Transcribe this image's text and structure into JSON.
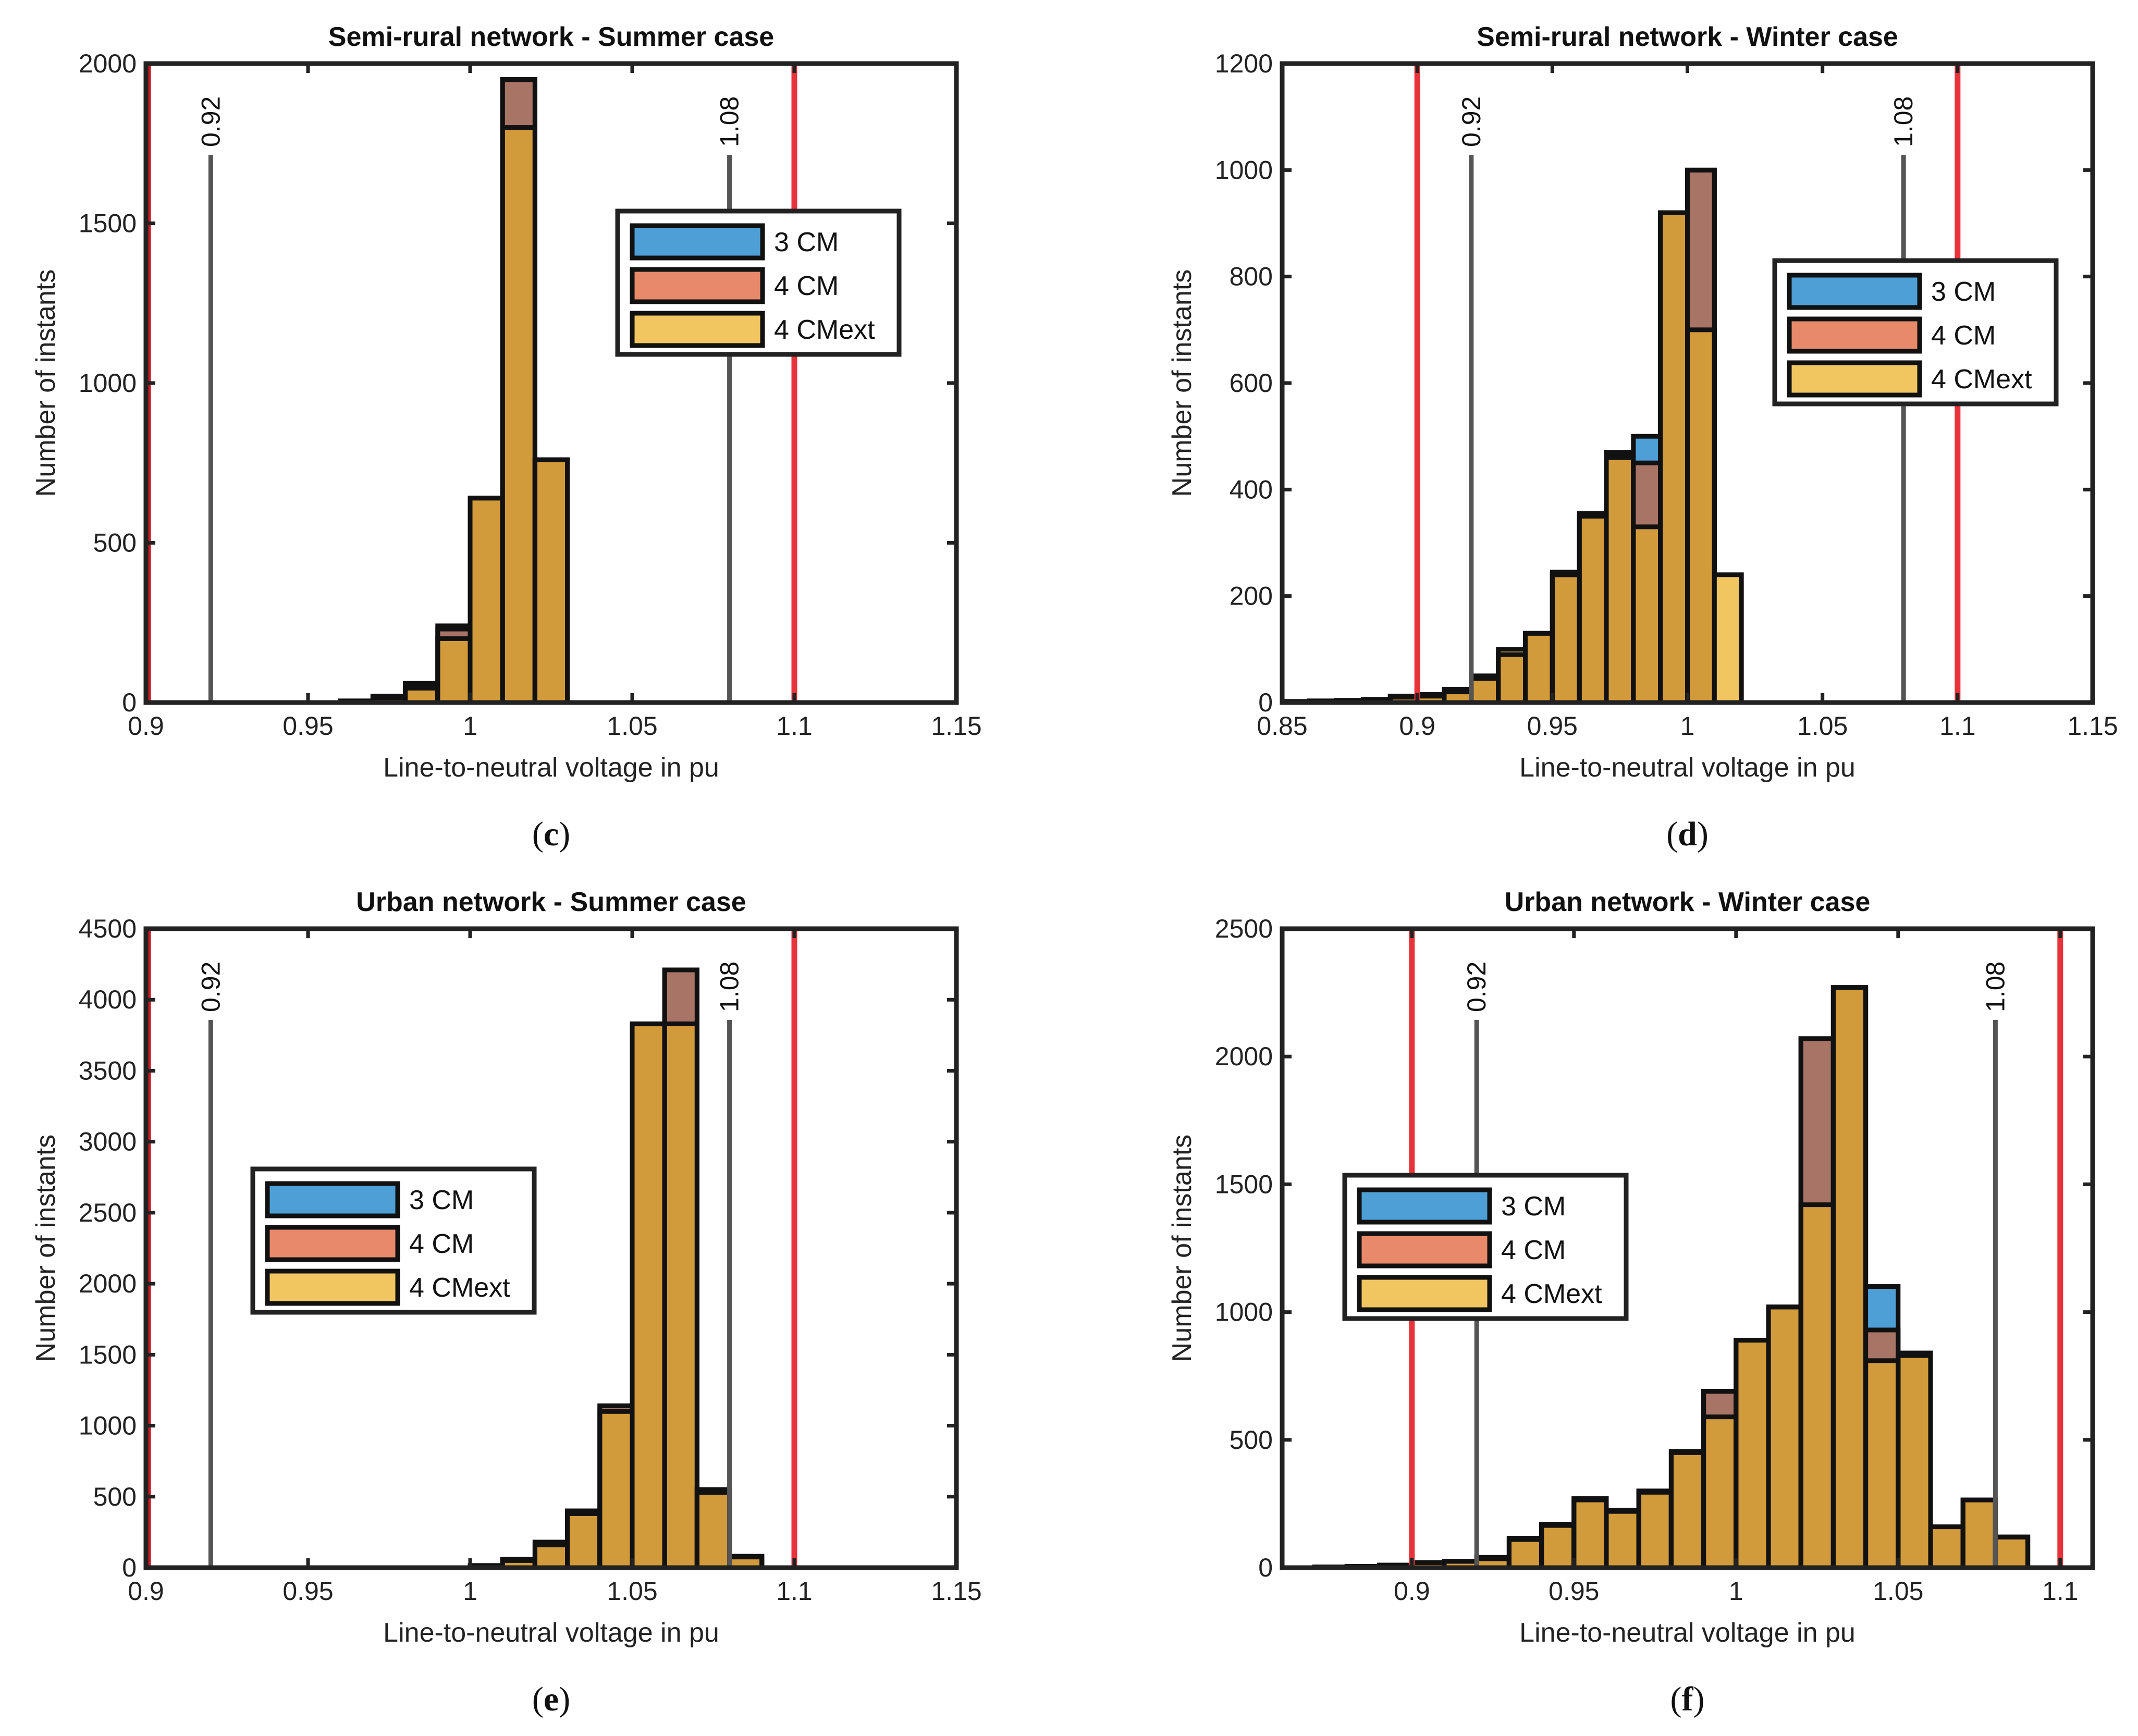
{
  "figure": {
    "legend_entries": [
      {
        "name": "3 CM",
        "color": "#4d9fd6"
      },
      {
        "name": "4 CM",
        "color": "#e8896a"
      },
      {
        "name": "4 CMext",
        "color": "#f1c661"
      }
    ],
    "colors": {
      "overlap": "#d19a3a",
      "overlap_3_4": "#a87466",
      "limit_line": "#e8333a",
      "limit_line_dark": "#c41c24",
      "ref_line": "#555555",
      "frame": "#222222"
    }
  },
  "chart_data": [
    {
      "panel_label": "c",
      "type": "bar",
      "title": "Semi-rural network - Summer case",
      "xlabel": "Line-to-neutral voltage in pu",
      "ylabel": "Number of instants",
      "xlim": [
        0.9,
        1.15
      ],
      "ylim": [
        0,
        2000
      ],
      "xticks": [
        0.9,
        0.95,
        1,
        1.05,
        1.1,
        1.15
      ],
      "xtick_labels": [
        "0.9",
        "0.95",
        "1",
        "1.05",
        "1.1",
        "1.15"
      ],
      "yticks": [
        0,
        500,
        1000,
        1500,
        2000
      ],
      "ytick_labels": [
        "0",
        "500",
        "1000",
        "1500",
        "2000"
      ],
      "bin_width": 0.01,
      "bin_edges": [
        0.96,
        0.97,
        0.98,
        0.99,
        1.0,
        1.01,
        1.02
      ],
      "series": [
        {
          "name": "3 CM",
          "values": [
            5,
            20,
            60,
            240,
            640,
            1950,
            760
          ]
        },
        {
          "name": "4 CM",
          "values": [
            5,
            20,
            55,
            230,
            640,
            1950,
            760
          ]
        },
        {
          "name": "4 CMext",
          "values": [
            5,
            15,
            45,
            200,
            640,
            1800,
            760
          ]
        }
      ],
      "ref_lines": [
        {
          "x": 0.92,
          "label": "0.92"
        },
        {
          "x": 1.08,
          "label": "1.08"
        }
      ],
      "limit_lines": [
        0.9,
        1.1
      ],
      "legend_position": "top-right"
    },
    {
      "panel_label": "d",
      "type": "bar",
      "title": "Semi-rural network - Winter case",
      "xlabel": "Line-to-neutral voltage in pu",
      "ylabel": "Number of instants",
      "xlim": [
        0.85,
        1.15
      ],
      "ylim": [
        0,
        1200
      ],
      "xticks": [
        0.85,
        0.9,
        0.95,
        1,
        1.05,
        1.1,
        1.15
      ],
      "xtick_labels": [
        "0.85",
        "0.9",
        "0.95",
        "1",
        "1.05",
        "1.1",
        "1.15"
      ],
      "yticks": [
        0,
        200,
        400,
        600,
        800,
        1000,
        1200
      ],
      "ytick_labels": [
        "0",
        "200",
        "400",
        "600",
        "800",
        "1000",
        "1200"
      ],
      "bin_width": 0.01,
      "bin_edges": [
        0.85,
        0.86,
        0.87,
        0.88,
        0.89,
        0.9,
        0.91,
        0.92,
        0.93,
        0.94,
        0.95,
        0.96,
        0.97,
        0.98,
        0.99,
        1.0,
        1.01
      ],
      "series": [
        {
          "name": "3 CM",
          "values": [
            2,
            3,
            4,
            6,
            12,
            15,
            25,
            50,
            90,
            130,
            245,
            355,
            470,
            500,
            920,
            1000,
            0
          ]
        },
        {
          "name": "4 CM",
          "values": [
            2,
            3,
            4,
            6,
            12,
            15,
            25,
            50,
            90,
            130,
            240,
            350,
            465,
            450,
            920,
            1000,
            0
          ]
        },
        {
          "name": "4 CMext",
          "values": [
            2,
            3,
            4,
            5,
            10,
            12,
            20,
            45,
            100,
            130,
            240,
            350,
            460,
            330,
            920,
            700,
            240
          ]
        }
      ],
      "ref_lines": [
        {
          "x": 0.92,
          "label": "0.92"
        },
        {
          "x": 1.08,
          "label": "1.08"
        }
      ],
      "limit_lines": [
        0.9,
        1.1
      ],
      "legend_position": "top-right"
    },
    {
      "panel_label": "e",
      "type": "bar",
      "title": "Urban network - Summer case",
      "xlabel": "Line-to-neutral voltage in pu",
      "ylabel": "Number of instants",
      "xlim": [
        0.9,
        1.15
      ],
      "ylim": [
        0,
        4500
      ],
      "xticks": [
        0.9,
        0.95,
        1,
        1.05,
        1.1,
        1.15
      ],
      "xtick_labels": [
        "0.9",
        "0.95",
        "1",
        "1.05",
        "1.1",
        "1.15"
      ],
      "yticks": [
        0,
        500,
        1000,
        1500,
        2000,
        2500,
        3000,
        3500,
        4000,
        4500
      ],
      "ytick_labels": [
        "0",
        "500",
        "1000",
        "1500",
        "2000",
        "2500",
        "3000",
        "3500",
        "4000",
        "4500"
      ],
      "bin_width": 0.01,
      "bin_edges": [
        1.0,
        1.01,
        1.02,
        1.03,
        1.04,
        1.05,
        1.06,
        1.07,
        1.08
      ],
      "series": [
        {
          "name": "3 CM",
          "values": [
            15,
            60,
            180,
            400,
            1140,
            3830,
            4210,
            550,
            80
          ]
        },
        {
          "name": "4 CM",
          "values": [
            15,
            60,
            180,
            400,
            1140,
            3830,
            4210,
            550,
            80
          ]
        },
        {
          "name": "4 CMext",
          "values": [
            10,
            50,
            160,
            380,
            1100,
            3830,
            3830,
            530,
            75
          ]
        }
      ],
      "ref_lines": [
        {
          "x": 0.92,
          "label": "0.92"
        },
        {
          "x": 1.08,
          "label": "1.08"
        }
      ],
      "limit_lines": [
        0.9,
        1.1
      ],
      "legend_position": "center-left"
    },
    {
      "panel_label": "f",
      "type": "bar",
      "title": "Urban network - Winter case",
      "xlabel": "Line-to-neutral voltage in pu",
      "ylabel": "Number of instants",
      "xlim": [
        0.86,
        1.11
      ],
      "ylim": [
        0,
        2500
      ],
      "xticks": [
        0.9,
        0.95,
        1,
        1.05,
        1.1
      ],
      "xtick_labels": [
        "0.9",
        "0.95",
        "1",
        "1.05",
        "1.1"
      ],
      "yticks": [
        0,
        500,
        1000,
        1500,
        2000,
        2500
      ],
      "ytick_labels": [
        "0",
        "500",
        "1000",
        "1500",
        "2000",
        "2500"
      ],
      "bin_width": 0.01,
      "bin_edges": [
        0.87,
        0.88,
        0.89,
        0.9,
        0.91,
        0.92,
        0.93,
        0.94,
        0.95,
        0.96,
        0.97,
        0.98,
        0.99,
        1.0,
        1.01,
        1.02,
        1.03,
        1.04,
        1.05,
        1.06,
        1.07,
        1.08
      ],
      "series": [
        {
          "name": "3 CM",
          "values": [
            3,
            5,
            10,
            20,
            25,
            40,
            115,
            170,
            270,
            225,
            300,
            455,
            690,
            890,
            1020,
            2070,
            2270,
            1100,
            830,
            160,
            265,
            120
          ]
        },
        {
          "name": "4 CM",
          "values": [
            3,
            5,
            10,
            20,
            25,
            40,
            115,
            170,
            270,
            225,
            300,
            455,
            690,
            890,
            1020,
            2070,
            2270,
            930,
            830,
            160,
            265,
            120
          ]
        },
        {
          "name": "4 CMext",
          "values": [
            3,
            5,
            10,
            20,
            25,
            35,
            110,
            165,
            265,
            220,
            295,
            450,
            590,
            890,
            1020,
            1420,
            2270,
            810,
            840,
            160,
            265,
            120
          ]
        }
      ],
      "ref_lines": [
        {
          "x": 0.92,
          "label": "0.92"
        },
        {
          "x": 1.08,
          "label": "1.08"
        }
      ],
      "limit_lines": [
        0.9,
        1.1
      ],
      "legend_position": "center-left"
    }
  ]
}
